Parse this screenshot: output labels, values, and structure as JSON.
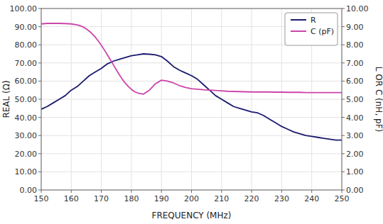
{
  "chart_data": {
    "type": "line",
    "x_label": "FREQUENCY (MHz)",
    "y_label": "REAL (Ω)",
    "y2_label": "L OR C (nH, pF)",
    "xlim": [
      150,
      250
    ],
    "xticks": [
      150,
      160,
      170,
      180,
      190,
      200,
      210,
      220,
      230,
      240,
      250
    ],
    "ylim": [
      0,
      100
    ],
    "yticks": [
      {
        "value": 0,
        "label": "0.00"
      },
      {
        "value": 10,
        "label": "10.00"
      },
      {
        "value": 20,
        "label": "20.00"
      },
      {
        "value": 30,
        "label": "30.00"
      },
      {
        "value": 40,
        "label": "40.00"
      },
      {
        "value": 50,
        "label": "50.00"
      },
      {
        "value": 60,
        "label": "60.00"
      },
      {
        "value": 70,
        "label": "70.00"
      },
      {
        "value": 80,
        "label": "80.00"
      },
      {
        "value": 90,
        "label": "90.00"
      },
      {
        "value": 100,
        "label": "100.00"
      }
    ],
    "y2lim": [
      0,
      10
    ],
    "y2ticks": [
      {
        "value": 0,
        "label": "0.00"
      },
      {
        "value": 1,
        "label": "1.00"
      },
      {
        "value": 2,
        "label": "2.00"
      },
      {
        "value": 3,
        "label": "3.00"
      },
      {
        "value": 4,
        "label": "4.00"
      },
      {
        "value": 5,
        "label": "5.00"
      },
      {
        "value": 6,
        "label": "6.00"
      },
      {
        "value": 7,
        "label": "7.00"
      },
      {
        "value": 8,
        "label": "8.00"
      },
      {
        "value": 9,
        "label": "9.00"
      },
      {
        "value": 10,
        "label": "10.00"
      }
    ],
    "grid": true,
    "legend": "upper right",
    "series": [
      {
        "name": "R",
        "color": "#1a1a6e",
        "x": [
          150,
          152,
          154,
          156,
          158,
          160,
          162,
          164,
          166,
          168,
          170,
          172,
          174,
          176,
          178,
          180,
          182,
          184,
          186,
          188,
          190,
          192,
          194,
          196,
          198,
          200,
          202,
          204,
          206,
          208,
          210,
          212,
          214,
          216,
          218,
          220,
          222,
          224,
          226,
          228,
          230,
          232,
          234,
          236,
          238,
          240,
          242,
          244,
          246,
          248,
          250
        ],
        "values": [
          44.5,
          46,
          48,
          50,
          52,
          55,
          57,
          60,
          63,
          65,
          67,
          69.5,
          71,
          72,
          73,
          74,
          74.5,
          75,
          74.8,
          74.5,
          73.5,
          71,
          68,
          66,
          64.5,
          63,
          61,
          58,
          55,
          52,
          50,
          48,
          46,
          45,
          44,
          43,
          42.5,
          41,
          39,
          37,
          35,
          33.5,
          32,
          31,
          30,
          29.5,
          29,
          28.5,
          28,
          27.5,
          27.5
        ]
      },
      {
        "name": "C (pF)",
        "color": "#cc44aa",
        "axis": "y2",
        "x": [
          150,
          152,
          154,
          156,
          158,
          160,
          162,
          163,
          164,
          165,
          166,
          167,
          168,
          169,
          170,
          171,
          172,
          173,
          174,
          175,
          176,
          177,
          178,
          179,
          180,
          181,
          182,
          184,
          186,
          188,
          190,
          192,
          194,
          196,
          198,
          200,
          202,
          204,
          206,
          208,
          210,
          212,
          214,
          216,
          218,
          220,
          222,
          224,
          226,
          228,
          230,
          232,
          234,
          236,
          238,
          240,
          242,
          244,
          246,
          248,
          250
        ],
        "values": [
          9.15,
          9.18,
          9.18,
          9.18,
          9.17,
          9.15,
          9.1,
          9.05,
          8.98,
          8.88,
          8.75,
          8.6,
          8.42,
          8.2,
          7.98,
          7.72,
          7.45,
          7.18,
          6.9,
          6.62,
          6.35,
          6.1,
          5.88,
          5.7,
          5.55,
          5.42,
          5.35,
          5.28,
          5.5,
          5.85,
          6.05,
          6.0,
          5.9,
          5.75,
          5.65,
          5.58,
          5.55,
          5.52,
          5.5,
          5.48,
          5.46,
          5.44,
          5.43,
          5.42,
          5.41,
          5.4,
          5.4,
          5.4,
          5.4,
          5.39,
          5.39,
          5.38,
          5.38,
          5.38,
          5.37,
          5.37,
          5.37,
          5.37,
          5.37,
          5.37,
          5.37
        ]
      }
    ]
  }
}
